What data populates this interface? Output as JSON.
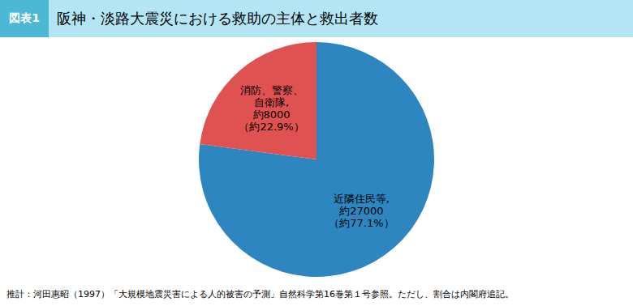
{
  "chart_data": {
    "type": "pie",
    "title": "阪神・淡路大震災における救助の主体と救出者数",
    "subtitle": "図表1",
    "categories": [
      "近隣住民等,\n約27000\n（約77.1%）",
      "消防、警察、\n自衛隊,\n約8000\n（約22.9%）"
    ],
    "values": [
      77.1,
      22.9
    ],
    "colors": [
      "#2E86C1",
      "#E05252"
    ],
    "data_labels": true,
    "annotations": [
      "推計：河田惠昭（1997）「大規模地震災害による人的被害の予測」自然科学第16巻第１号参照。ただし、割合は内閣府追記。"
    ]
  }
}
